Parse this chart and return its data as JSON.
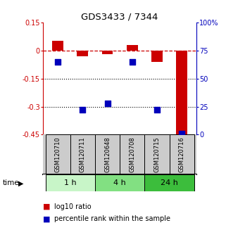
{
  "title": "GDS3433 / 7344",
  "samples": [
    "GSM120710",
    "GSM120711",
    "GSM120648",
    "GSM120708",
    "GSM120715",
    "GSM120716"
  ],
  "log10_ratio": [
    0.05,
    -0.03,
    -0.02,
    0.03,
    -0.06,
    -0.45
  ],
  "percentile_rank": [
    65,
    22,
    28,
    65,
    22,
    1
  ],
  "left_ylim": [
    -0.45,
    0.15
  ],
  "right_ylim": [
    0,
    100
  ],
  "left_yticks": [
    0.15,
    0.0,
    -0.15,
    -0.3,
    -0.45
  ],
  "left_yticklabels": [
    "0.15",
    "0",
    "-0.15",
    "-0.3",
    "-0.45"
  ],
  "right_yticks": [
    100,
    75,
    50,
    25,
    0
  ],
  "right_yticklabels": [
    "100%",
    "75",
    "50",
    "25",
    "0"
  ],
  "hlines_dotted": [
    -0.15,
    -0.3
  ],
  "hline_dashed": 0.0,
  "time_groups": [
    {
      "label": "1 h",
      "start": 0,
      "end": 2,
      "color": "#c8f5c8"
    },
    {
      "label": "4 h",
      "start": 2,
      "end": 4,
      "color": "#82e082"
    },
    {
      "label": "24 h",
      "start": 4,
      "end": 6,
      "color": "#3cbd3c"
    }
  ],
  "bar_color": "#cc0000",
  "scatter_color": "#0000bb",
  "bar_width": 0.45,
  "scatter_size": 35,
  "background_color": "#ffffff",
  "sample_box_color": "#cccccc",
  "legend_items": [
    {
      "color": "#cc0000",
      "label": "log10 ratio"
    },
    {
      "color": "#0000bb",
      "label": "percentile rank within the sample"
    }
  ],
  "left_label_color": "#cc0000",
  "right_label_color": "#0000bb"
}
